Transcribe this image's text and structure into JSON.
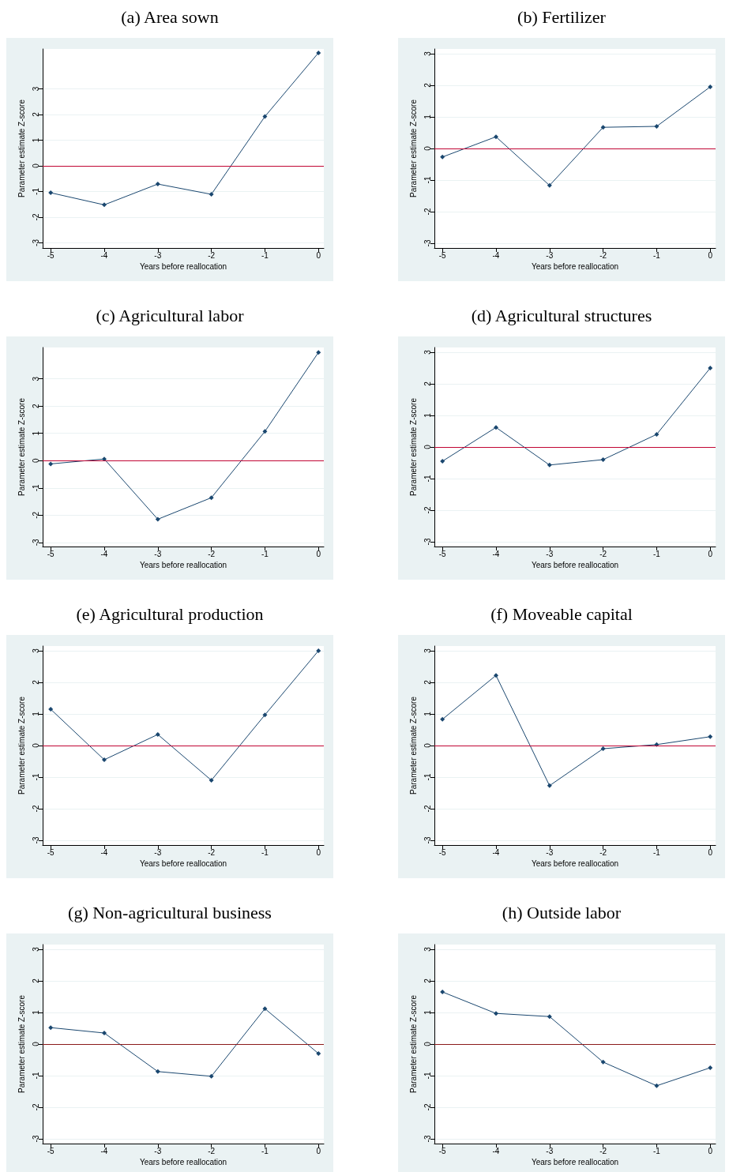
{
  "chart_data": [
    {
      "type": "line",
      "title": "(a) Area sown",
      "xlabel": "Years before reallocation",
      "ylabel": "Parameter estimate Z-score",
      "x": [
        -5,
        -4,
        -3,
        -2,
        -1,
        0
      ],
      "values": [
        -1.05,
        -1.52,
        -0.71,
        -1.11,
        1.92,
        4.4
      ],
      "color": "#1a476f",
      "marker": "diamond",
      "xlim": [
        -5.15,
        0.1
      ],
      "ylim": [
        -3.2,
        4.55
      ],
      "xticks": [
        -5,
        -4,
        -3,
        -2,
        -1,
        0
      ],
      "yticks": [
        -3,
        -2,
        -1,
        0,
        1,
        2,
        3
      ],
      "grid": "y",
      "ref_lines": [
        {
          "axis": "y",
          "value": 0,
          "color": "#c10534"
        }
      ]
    },
    {
      "type": "line",
      "title": "(b) Fertilizer",
      "xlabel": "Years before reallocation",
      "ylabel": "Parameter estimate Z-score",
      "x": [
        -5,
        -4,
        -3,
        -2,
        -1,
        0
      ],
      "values": [
        -0.27,
        0.37,
        -1.17,
        0.67,
        0.7,
        1.95
      ],
      "color": "#1a476f",
      "marker": "diamond",
      "xlim": [
        -5.15,
        0.1
      ],
      "ylim": [
        -3.15,
        3.15
      ],
      "xticks": [
        -5,
        -4,
        -3,
        -2,
        -1,
        0
      ],
      "yticks": [
        -3,
        -2,
        -1,
        0,
        1,
        2,
        3
      ],
      "grid": "y",
      "ref_lines": [
        {
          "axis": "y",
          "value": 0,
          "color": "#c10534"
        }
      ]
    },
    {
      "type": "line",
      "title": "(c) Agricultural labor",
      "xlabel": "Years before reallocation",
      "ylabel": "Parameter estimate Z-score",
      "x": [
        -5,
        -4,
        -3,
        -2,
        -1,
        0
      ],
      "values": [
        -0.12,
        0.06,
        -2.15,
        -1.36,
        1.07,
        3.97
      ],
      "color": "#1a476f",
      "marker": "diamond",
      "xlim": [
        -5.15,
        0.1
      ],
      "ylim": [
        -3.15,
        4.15
      ],
      "xticks": [
        -5,
        -4,
        -3,
        -2,
        -1,
        0
      ],
      "yticks": [
        -3,
        -2,
        -1,
        0,
        1,
        2,
        3
      ],
      "grid": "y",
      "ref_lines": [
        {
          "axis": "y",
          "value": 0,
          "color": "#c10534"
        }
      ]
    },
    {
      "type": "line",
      "title": "(d) Agricultural structures",
      "xlabel": "Years before reallocation",
      "ylabel": "Parameter estimate Z-score",
      "x": [
        -5,
        -4,
        -3,
        -2,
        -1,
        0
      ],
      "values": [
        -0.45,
        0.62,
        -0.57,
        -0.4,
        0.4,
        2.5
      ],
      "color": "#1a476f",
      "marker": "diamond",
      "xlim": [
        -5.15,
        0.1
      ],
      "ylim": [
        -3.15,
        3.15
      ],
      "xticks": [
        -5,
        -4,
        -3,
        -2,
        -1,
        0
      ],
      "yticks": [
        -3,
        -2,
        -1,
        0,
        1,
        2,
        3
      ],
      "grid": "y",
      "ref_lines": [
        {
          "axis": "y",
          "value": 0,
          "color": "#c10534"
        }
      ]
    },
    {
      "type": "line",
      "title": "(e) Agricultural production",
      "xlabel": "Years before reallocation",
      "ylabel": "Parameter estimate Z-score",
      "x": [
        -5,
        -4,
        -3,
        -2,
        -1,
        0
      ],
      "values": [
        1.15,
        -0.45,
        0.35,
        -1.1,
        0.97,
        3.0
      ],
      "color": "#1a476f",
      "marker": "diamond",
      "xlim": [
        -5.15,
        0.1
      ],
      "ylim": [
        -3.15,
        3.15
      ],
      "xticks": [
        -5,
        -4,
        -3,
        -2,
        -1,
        0
      ],
      "yticks": [
        -3,
        -2,
        -1,
        0,
        1,
        2,
        3
      ],
      "grid": "y",
      "ref_lines": [
        {
          "axis": "y",
          "value": 0,
          "color": "#c10534"
        }
      ]
    },
    {
      "type": "line",
      "title": "(f) Moveable capital",
      "xlabel": "Years before reallocation",
      "ylabel": "Parameter estimate Z-score",
      "x": [
        -5,
        -4,
        -3,
        -2,
        -1,
        0
      ],
      "values": [
        0.83,
        2.22,
        -1.27,
        -0.1,
        0.03,
        0.28
      ],
      "color": "#1a476f",
      "marker": "diamond",
      "xlim": [
        -5.15,
        0.1
      ],
      "ylim": [
        -3.15,
        3.15
      ],
      "xticks": [
        -5,
        -4,
        -3,
        -2,
        -1,
        0
      ],
      "yticks": [
        -3,
        -2,
        -1,
        0,
        1,
        2,
        3
      ],
      "grid": "y",
      "ref_lines": [
        {
          "axis": "y",
          "value": 0,
          "color": "#c10534"
        }
      ]
    },
    {
      "type": "line",
      "title": "(g) Non-agricultural business",
      "xlabel": "Years before reallocation",
      "ylabel": "Parameter estimate Z-score",
      "x": [
        -5,
        -4,
        -3,
        -2,
        -1,
        0
      ],
      "values": [
        0.52,
        0.35,
        -0.87,
        -1.02,
        1.12,
        -0.3
      ],
      "color": "#1a476f",
      "marker": "diamond",
      "xlim": [
        -5.15,
        0.1
      ],
      "ylim": [
        -3.15,
        3.15
      ],
      "xticks": [
        -5,
        -4,
        -3,
        -2,
        -1,
        0
      ],
      "yticks": [
        -3,
        -2,
        -1,
        0,
        1,
        2,
        3
      ],
      "grid": "y",
      "ref_lines": [
        {
          "axis": "y",
          "value": 0,
          "color": "#8b1a1a"
        }
      ]
    },
    {
      "type": "line",
      "title": "(h) Outside labor",
      "xlabel": "Years before reallocation",
      "ylabel": "Parameter estimate Z-score",
      "x": [
        -5,
        -4,
        -3,
        -2,
        -1,
        0
      ],
      "values": [
        1.65,
        0.97,
        0.87,
        -0.57,
        -1.32,
        -0.75
      ],
      "color": "#1a476f",
      "marker": "diamond",
      "xlim": [
        -5.15,
        0.1
      ],
      "ylim": [
        -3.15,
        3.15
      ],
      "xticks": [
        -5,
        -4,
        -3,
        -2,
        -1,
        0
      ],
      "yticks": [
        -3,
        -2,
        -1,
        0,
        1,
        2,
        3
      ],
      "grid": "y",
      "ref_lines": [
        {
          "axis": "y",
          "value": 0,
          "color": "#8b1a1a"
        }
      ]
    }
  ]
}
